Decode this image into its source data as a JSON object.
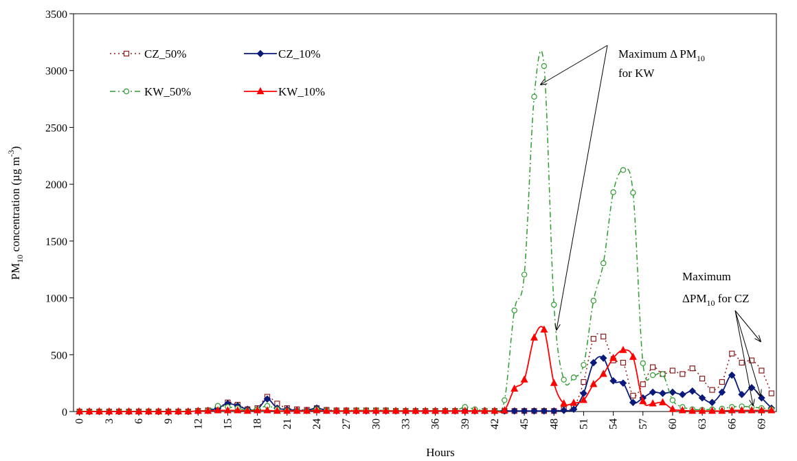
{
  "chart_data": {
    "type": "line",
    "x_label": "Hours",
    "y_label": [
      "PM",
      "10",
      " concentration (µg m",
      "-3",
      ")"
    ],
    "x": [
      0,
      1,
      2,
      3,
      4,
      5,
      6,
      7,
      8,
      9,
      10,
      11,
      12,
      13,
      14,
      15,
      16,
      17,
      18,
      19,
      20,
      21,
      22,
      23,
      24,
      25,
      26,
      27,
      28,
      29,
      30,
      31,
      32,
      33,
      34,
      35,
      36,
      37,
      38,
      39,
      40,
      41,
      42,
      43,
      44,
      45,
      46,
      47,
      48,
      49,
      50,
      51,
      52,
      53,
      54,
      55,
      56,
      57,
      58,
      59,
      60,
      61,
      62,
      63,
      64,
      65,
      66,
      67,
      68,
      69,
      70
    ],
    "xlim": [
      -0.6,
      70.5
    ],
    "xticks": [
      0,
      3,
      6,
      9,
      12,
      15,
      18,
      21,
      24,
      27,
      30,
      33,
      36,
      39,
      42,
      45,
      48,
      51,
      54,
      57,
      60,
      63,
      66,
      69
    ],
    "ylim": [
      0,
      3500
    ],
    "yticks": [
      0,
      500,
      1000,
      1500,
      2000,
      2500,
      3000,
      3500
    ],
    "series": [
      {
        "name": "CZ_50%",
        "color": "#8b1a1a",
        "values": [
          0,
          0,
          0,
          0,
          0,
          0,
          0,
          0,
          0,
          0,
          0,
          0,
          5,
          10,
          30,
          80,
          60,
          20,
          30,
          130,
          70,
          30,
          20,
          15,
          30,
          15,
          10,
          10,
          10,
          10,
          10,
          10,
          5,
          5,
          5,
          5,
          5,
          5,
          5,
          10,
          5,
          5,
          5,
          5,
          5,
          5,
          5,
          5,
          5,
          20,
          40,
          260,
          640,
          660,
          450,
          430,
          140,
          240,
          390,
          330,
          360,
          330,
          380,
          290,
          190,
          260,
          510,
          430,
          450,
          360,
          160
        ]
      },
      {
        "name": "CZ_10%",
        "color": "#0a1a7a",
        "values": [
          0,
          0,
          0,
          0,
          0,
          0,
          0,
          0,
          0,
          0,
          0,
          0,
          5,
          10,
          30,
          70,
          50,
          20,
          20,
          110,
          30,
          20,
          10,
          10,
          30,
          10,
          5,
          5,
          5,
          5,
          5,
          5,
          5,
          5,
          5,
          5,
          5,
          5,
          5,
          5,
          5,
          5,
          5,
          5,
          5,
          5,
          5,
          5,
          5,
          10,
          20,
          160,
          430,
          470,
          270,
          250,
          80,
          120,
          170,
          160,
          170,
          150,
          180,
          120,
          80,
          170,
          320,
          150,
          210,
          120,
          30
        ]
      },
      {
        "name": "KW_50%",
        "color": "#2e9b2e",
        "values": [
          0,
          0,
          0,
          0,
          0,
          0,
          0,
          0,
          0,
          0,
          0,
          0,
          5,
          10,
          50,
          40,
          30,
          10,
          20,
          50,
          20,
          10,
          5,
          5,
          20,
          10,
          5,
          5,
          10,
          10,
          10,
          10,
          5,
          5,
          5,
          5,
          5,
          5,
          5,
          40,
          20,
          10,
          5,
          100,
          890,
          1205,
          2770,
          3040,
          940,
          280,
          300,
          410,
          975,
          1305,
          1930,
          2125,
          1925,
          425,
          320,
          330,
          100,
          40,
          20,
          15,
          20,
          25,
          40,
          45,
          40,
          30,
          20
        ]
      },
      {
        "name": "KW_10%",
        "color": "#ff0000",
        "values": [
          0,
          0,
          0,
          0,
          0,
          0,
          0,
          0,
          0,
          0,
          0,
          0,
          5,
          5,
          10,
          10,
          10,
          5,
          10,
          10,
          5,
          5,
          5,
          5,
          10,
          5,
          5,
          5,
          5,
          5,
          5,
          5,
          5,
          5,
          5,
          5,
          5,
          5,
          5,
          5,
          5,
          5,
          5,
          10,
          200,
          280,
          650,
          720,
          250,
          70,
          75,
          100,
          240,
          330,
          470,
          540,
          480,
          90,
          70,
          80,
          20,
          10,
          5,
          5,
          5,
          5,
          10,
          10,
          10,
          10,
          10
        ]
      }
    ],
    "annotations": [
      {
        "lines": [
          "Maximum Δ PM",
          "10",
          "for KW"
        ]
      },
      {
        "lines": [
          "Maximum",
          "ΔPM",
          "10",
          " for CZ"
        ]
      }
    ]
  }
}
